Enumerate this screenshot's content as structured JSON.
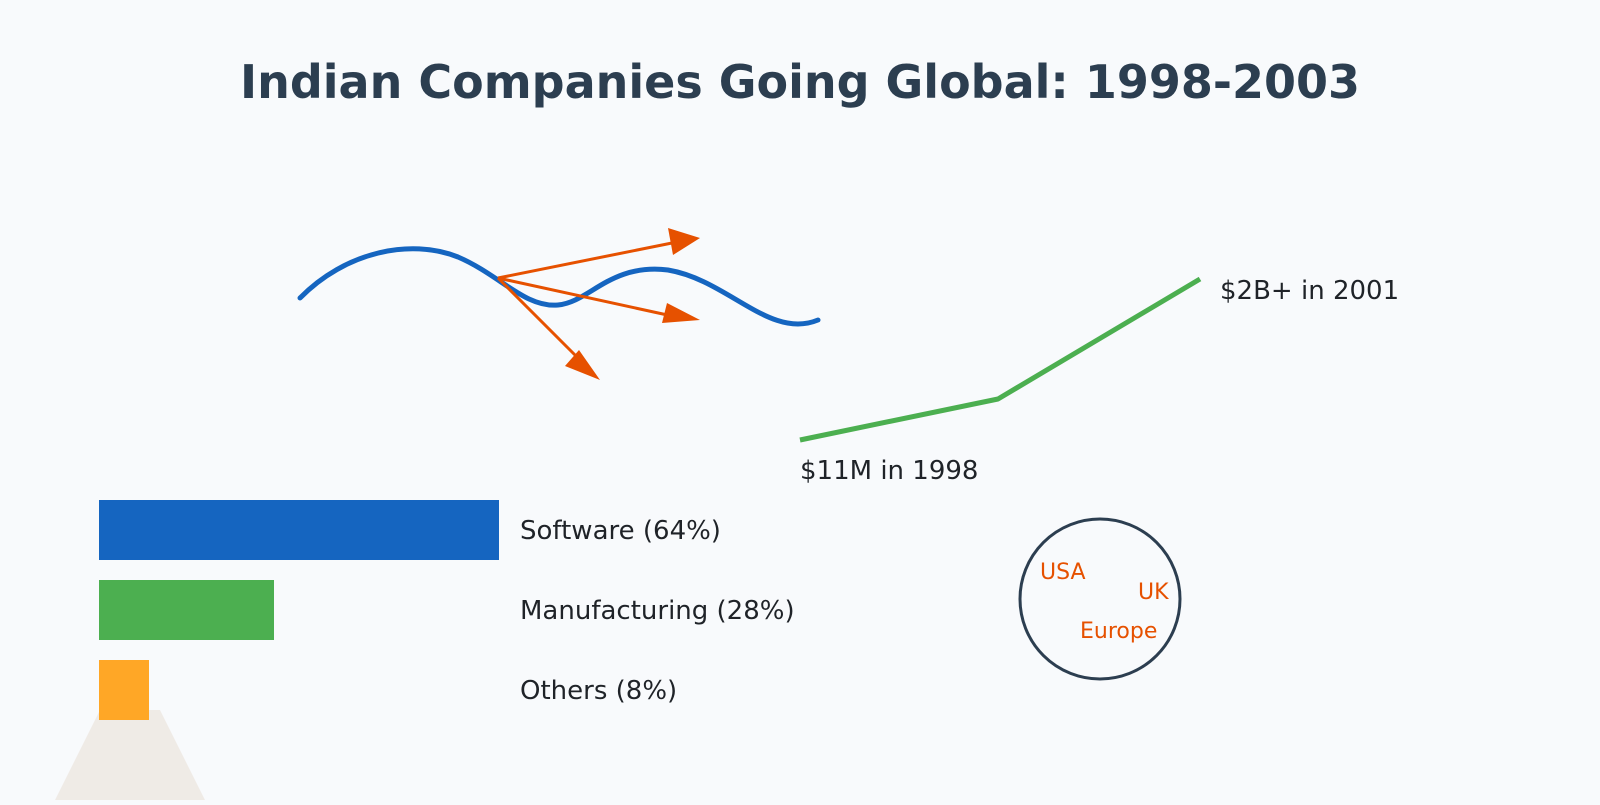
{
  "title": "Indian Companies Going Global: 1998-2003",
  "colors": {
    "background": "#f8fafc",
    "title": "#2c3e50",
    "wave": "#1565c0",
    "arrows": "#e65100",
    "growth_line": "#4caf50",
    "globe_outline": "#2c3e50",
    "location_text": "#e65100",
    "sectors": [
      "#1565c0",
      "#4caf50",
      "#ffa726"
    ],
    "spotlight": "#efebe6"
  },
  "illustration": {
    "wave_icon": "flowing-wave-icon",
    "arrows_icon": "expansion-arrows-icon",
    "globe_icon": "globe-icon",
    "spotlight_icon": "spotlight-beam-icon"
  },
  "chart_data": [
    {
      "type": "bar",
      "orientation": "horizontal",
      "categories": [
        "Software (64%)",
        "Manufacturing (28%)",
        "Others (8%)"
      ],
      "values": [
        64,
        28,
        8
      ],
      "unit": "%"
    },
    {
      "type": "line",
      "x": [
        1998,
        2001
      ],
      "annotations": [
        "$11M in 1998",
        "$2B+ in 2001"
      ]
    }
  ],
  "globe": {
    "locations": [
      "USA",
      "UK",
      "Europe"
    ]
  }
}
